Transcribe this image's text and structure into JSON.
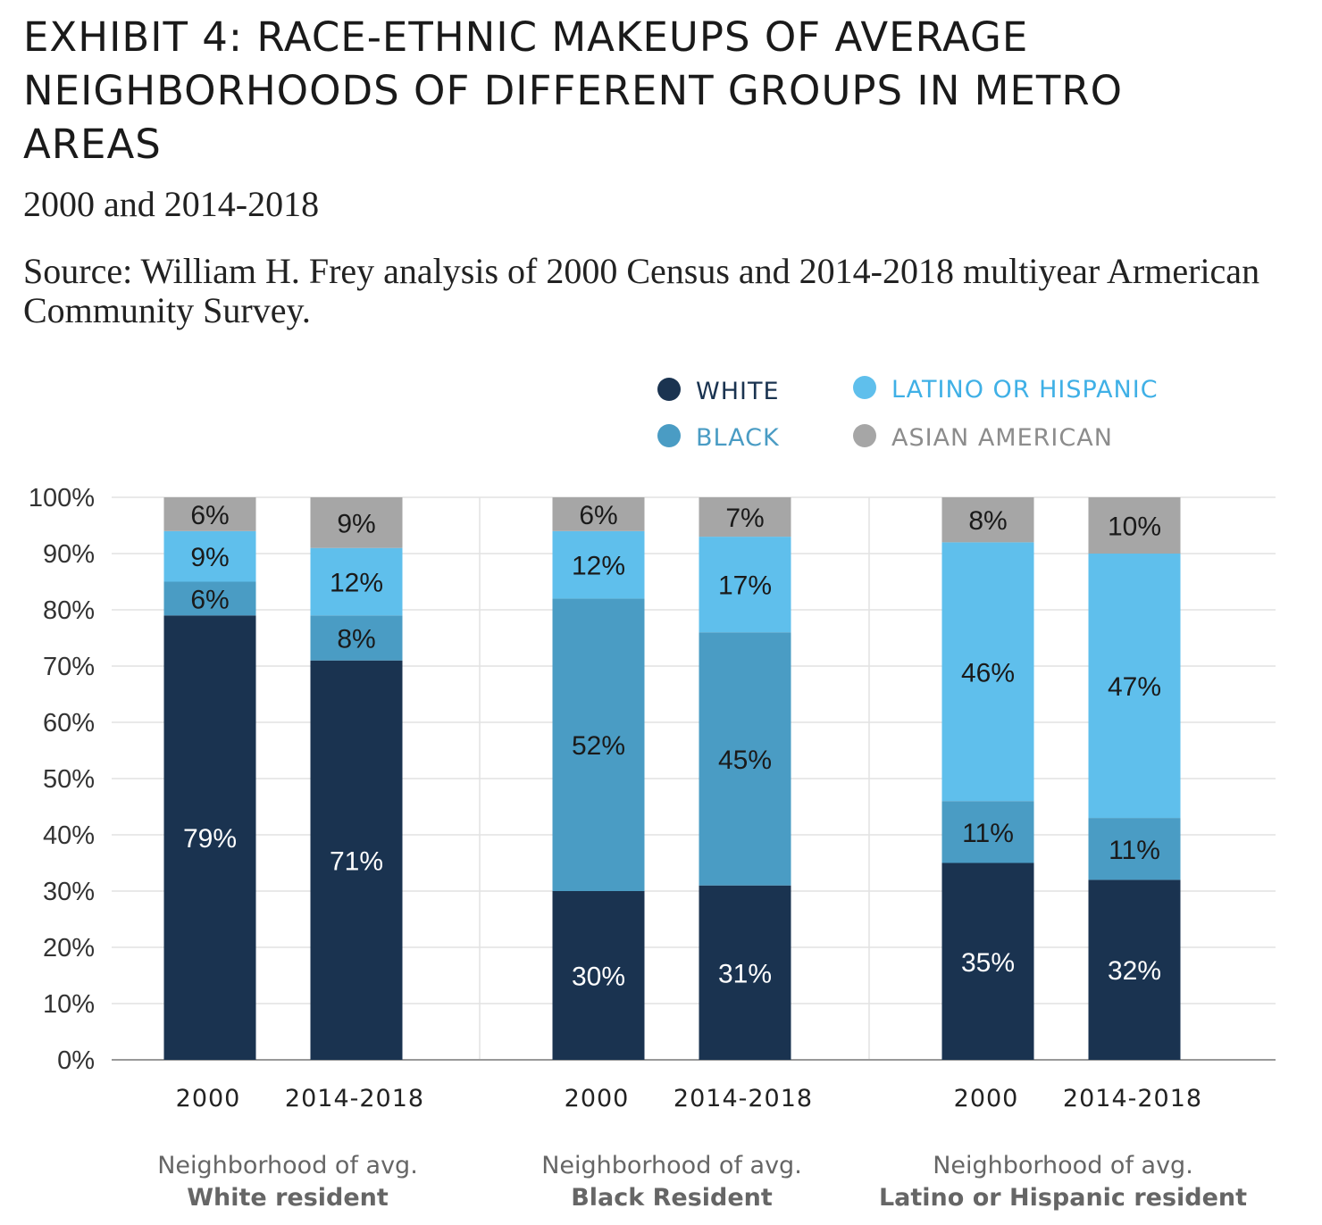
{
  "title": "EXHIBIT 4: RACE-ETHNIC MAKEUPS OF AVERAGE NEIGHBORHOODS OF DIFFERENT GROUPS IN METRO AREAS",
  "subtitle": "2000 and 2014-2018",
  "source": "Source: William H. Frey analysis of 2000 Census and 2014-2018 multiyear Armerican Community Survey.",
  "colors": {
    "white": "#1a3350",
    "black": "#4a9cc4",
    "latino": "#5fbfec",
    "asian": "#a6a6a6"
  },
  "chart_data": {
    "type": "bar",
    "stacked": true,
    "ylim": [
      0,
      100
    ],
    "y_ticks": [
      "0%",
      "10%",
      "20%",
      "30%",
      "40%",
      "50%",
      "60%",
      "70%",
      "80%",
      "90%",
      "100%"
    ],
    "legend": [
      {
        "key": "white",
        "label": "WHITE",
        "color": "#1a3350",
        "text_color": "#1a3350"
      },
      {
        "key": "latino",
        "label": "LATINO OR HISPANIC",
        "color": "#5fbfec",
        "text_color": "#3fb0e6"
      },
      {
        "key": "black",
        "label": "BLACK",
        "color": "#4a9cc4",
        "text_color": "#4a9cc4"
      },
      {
        "key": "asian",
        "label": "ASIAN AMERICAN",
        "color": "#a6a6a6",
        "text_color": "#8c8c8c"
      }
    ],
    "groups": [
      {
        "line1": "Neighborhood of avg.",
        "line2": "White resident",
        "bars": [
          {
            "x": "2000",
            "white": 79,
            "black": 6,
            "latino": 9,
            "asian": 6
          },
          {
            "x": "2014-2018",
            "white": 71,
            "black": 8,
            "latino": 12,
            "asian": 9
          }
        ]
      },
      {
        "line1": "Neighborhood of avg.",
        "line2": "Black Resident",
        "bars": [
          {
            "x": "2000",
            "white": 30,
            "black": 52,
            "latino": 12,
            "asian": 6
          },
          {
            "x": "2014-2018",
            "white": 31,
            "black": 45,
            "latino": 17,
            "asian": 7
          }
        ]
      },
      {
        "line1": "Neighborhood of avg.",
        "line2": "Latino or Hispanic resident",
        "bars": [
          {
            "x": "2000",
            "white": 35,
            "black": 11,
            "latino": 46,
            "asian": 8
          },
          {
            "x": "2014-2018",
            "white": 32,
            "black": 11,
            "latino": 47,
            "asian": 10
          }
        ]
      }
    ]
  }
}
